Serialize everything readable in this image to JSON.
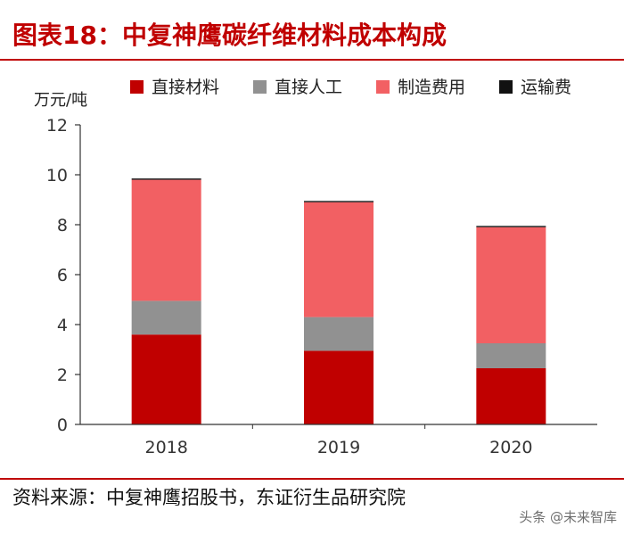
{
  "figure": {
    "title": "图表18：中复神鹰碳纤维材料成本构成",
    "source": "资料来源：中复神鹰招股书，东证衍生品研究院",
    "watermark": "头条 @未来智库"
  },
  "chart_data": {
    "type": "stacked-bar",
    "title": "中复神鹰碳纤维材料成本构成",
    "ylabel": "万元/吨",
    "xlabel": "",
    "ylim": [
      0,
      12
    ],
    "yticks": [
      0,
      2,
      4,
      6,
      8,
      10,
      12
    ],
    "categories": [
      "2018",
      "2019",
      "2020"
    ],
    "legend_position": "top",
    "series": [
      {
        "name": "直接材料",
        "color": "#c00000",
        "values": [
          3.6,
          2.95,
          2.25
        ]
      },
      {
        "name": "直接人工",
        "color": "#919191",
        "values": [
          1.35,
          1.35,
          1.0
        ]
      },
      {
        "name": "制造费用",
        "color": "#f26063",
        "values": [
          4.85,
          4.6,
          4.65
        ]
      },
      {
        "name": "运输费",
        "color": "#111111",
        "values": [
          0.05,
          0.05,
          0.05
        ]
      }
    ]
  }
}
